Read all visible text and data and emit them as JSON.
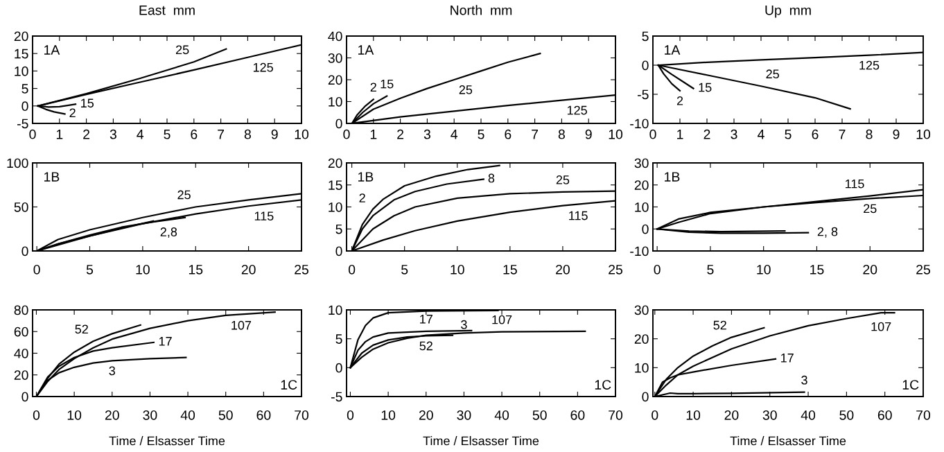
{
  "chart_data": [
    {
      "type": "line",
      "title": "East  mm",
      "xlim": [
        0,
        10
      ],
      "xticks": [
        0,
        1,
        2,
        3,
        4,
        5,
        6,
        7,
        8,
        9,
        10
      ],
      "ylim": [
        -5,
        20
      ],
      "yticks": [
        -5,
        0,
        5,
        10,
        15,
        20
      ],
      "grid": false,
      "marker": "none",
      "line_style": "solid",
      "series": [
        {
          "color": "#000000",
          "x": [
            0.2,
            2,
            4,
            6,
            8,
            10
          ],
          "values": [
            0,
            3.3,
            6.8,
            10.3,
            13.9,
            17.5
          ]
        },
        {
          "color": "#000000",
          "x": [
            0.2,
            2,
            4,
            6,
            7.2
          ],
          "values": [
            0,
            3.5,
            7.9,
            12.6,
            16.3
          ]
        },
        {
          "color": "#000000",
          "x": [
            0.2,
            0.6,
            1.0,
            1.6
          ],
          "values": [
            0,
            -0.3,
            -0.2,
            0.5
          ]
        },
        {
          "color": "#000000",
          "x": [
            0.2,
            0.5,
            0.8,
            1.2
          ],
          "values": [
            0,
            -1.0,
            -1.7,
            -2.3
          ]
        }
      ],
      "annotations": [
        "1A",
        {
          "text": "25",
          "x": 6,
          "y": 12.6
        },
        {
          "text": "125",
          "x": 8,
          "y": 13.9
        },
        {
          "text": "15",
          "x": 1.6,
          "y": 0.5
        },
        {
          "text": "2",
          "x": 1.2,
          "y": -2.3
        }
      ]
    },
    {
      "type": "line",
      "title": "North  mm",
      "xlim": [
        0,
        10
      ],
      "xticks": [
        0,
        1,
        2,
        3,
        4,
        5,
        6,
        7,
        8,
        9,
        10
      ],
      "ylim": [
        0,
        40
      ],
      "yticks": [
        0,
        10,
        20,
        30,
        40
      ],
      "grid": false,
      "marker": "none",
      "line_style": "solid",
      "series": [
        {
          "color": "#000000",
          "x": [
            0.2,
            0.4,
            0.7,
            1.0
          ],
          "values": [
            0,
            4,
            8,
            11
          ]
        },
        {
          "color": "#000000",
          "x": [
            0.2,
            0.6,
            1.0,
            1.5
          ],
          "values": [
            0,
            5,
            9,
            12.5
          ]
        },
        {
          "color": "#000000",
          "x": [
            0.2,
            1,
            2,
            3,
            4,
            5,
            6,
            7.2
          ],
          "values": [
            0,
            6.5,
            11.5,
            16,
            20,
            24,
            28,
            32
          ]
        },
        {
          "color": "#000000",
          "x": [
            0.2,
            2,
            4,
            6,
            8,
            10
          ],
          "values": [
            0,
            3,
            5.6,
            8.2,
            10.6,
            13
          ]
        }
      ],
      "annotations": [
        "1A",
        {
          "text": "2",
          "x": 1.0,
          "y": 11
        },
        {
          "text": "15",
          "x": 1.5,
          "y": 12.5
        },
        {
          "text": "25",
          "x": 4,
          "y": 20
        },
        {
          "text": "125",
          "x": 8,
          "y": 10.6
        }
      ]
    },
    {
      "type": "line",
      "title": "Up  mm",
      "xlim": [
        0,
        10
      ],
      "xticks": [
        0,
        1,
        2,
        3,
        4,
        5,
        6,
        7,
        8,
        9,
        10
      ],
      "ylim": [
        -10,
        5
      ],
      "yticks": [
        -10,
        -5,
        0,
        5
      ],
      "grid": false,
      "marker": "none",
      "line_style": "solid",
      "series": [
        {
          "color": "#000000",
          "x": [
            0.2,
            2,
            4,
            6,
            8,
            10
          ],
          "values": [
            0,
            0.5,
            0.9,
            1.3,
            1.7,
            2.2
          ]
        },
        {
          "color": "#000000",
          "x": [
            0.2,
            2,
            4,
            6,
            7.3
          ],
          "values": [
            0,
            -1.7,
            -3.6,
            -5.6,
            -7.5
          ]
        },
        {
          "color": "#000000",
          "x": [
            0.2,
            0.7,
            1.2,
            1.5
          ],
          "values": [
            0,
            -1.6,
            -3.1,
            -4.0
          ]
        },
        {
          "color": "#000000",
          "x": [
            0.2,
            0.4,
            0.7,
            1.0
          ],
          "values": [
            0,
            -1.5,
            -3.2,
            -4.4
          ]
        }
      ],
      "annotations": [
        "1A",
        {
          "text": "125",
          "x": 8,
          "y": 1.7
        },
        {
          "text": "25",
          "x": 4,
          "y": -3.6
        },
        {
          "text": "15",
          "x": 1.5,
          "y": -4.0
        },
        {
          "text": "2",
          "x": 1.0,
          "y": -4.4
        }
      ]
    },
    {
      "type": "line",
      "xlim": [
        -0.4,
        25
      ],
      "xticks": [
        0,
        5,
        10,
        15,
        20,
        25
      ],
      "ylim": [
        0,
        100
      ],
      "yticks": [
        0,
        50,
        100
      ],
      "grid": false,
      "marker": "none",
      "line_style": "solid",
      "series": [
        {
          "color": "#000000",
          "x": [
            0,
            2,
            5,
            10,
            15,
            20,
            25
          ],
          "values": [
            0,
            13,
            24,
            38,
            50,
            58,
            65
          ]
        },
        {
          "color": "#000000",
          "x": [
            0,
            5,
            10,
            15,
            20,
            25
          ],
          "values": [
            0,
            17,
            31,
            42,
            51,
            58
          ]
        },
        {
          "color": "#000000",
          "x": [
            0,
            2,
            5,
            8,
            11
          ],
          "values": [
            0,
            8,
            17,
            26,
            34
          ]
        },
        {
          "color": "#000000",
          "x": [
            0,
            2,
            5,
            8,
            11,
            14
          ],
          "values": [
            0,
            8,
            18,
            27,
            33,
            38
          ]
        }
      ],
      "annotations": [
        "1B",
        {
          "text": "25",
          "x": 15,
          "y": 50
        },
        {
          "text": "115",
          "x": 20,
          "y": 51
        },
        {
          "text": "2,8",
          "x": 11,
          "y": 33
        }
      ]
    },
    {
      "type": "line",
      "xlim": [
        -0.5,
        25
      ],
      "xticks": [
        0,
        5,
        10,
        15,
        20,
        25
      ],
      "ylim": [
        0,
        20
      ],
      "yticks": [
        0,
        5,
        10,
        15,
        20
      ],
      "grid": false,
      "marker": "none",
      "line_style": "solid",
      "series": [
        {
          "color": "#000000",
          "x": [
            0,
            1,
            2,
            3,
            5,
            8,
            11,
            14
          ],
          "values": [
            0,
            6,
            9.5,
            11.8,
            14.8,
            17,
            18.5,
            19.4
          ]
        },
        {
          "color": "#000000",
          "x": [
            0,
            1,
            2,
            4,
            6,
            9,
            12.5
          ],
          "values": [
            0,
            5,
            8,
            11.6,
            13.5,
            15.2,
            16.3
          ]
        },
        {
          "color": "#000000",
          "x": [
            0,
            2,
            4,
            6,
            10,
            15,
            20,
            25
          ],
          "values": [
            0,
            5,
            8,
            10,
            12,
            13,
            13.4,
            13.6
          ]
        },
        {
          "color": "#000000",
          "x": [
            0,
            3,
            6,
            10,
            15,
            20,
            25
          ],
          "values": [
            0,
            2.5,
            4.6,
            6.8,
            8.8,
            10.3,
            11.4
          ]
        }
      ],
      "annotations": [
        "1B",
        {
          "text": "2",
          "x": 3,
          "y": 11.8
        },
        {
          "text": "8",
          "x": 12.5,
          "y": 16.3
        },
        {
          "text": "25",
          "x": 20,
          "y": 13.4
        },
        {
          "text": "115",
          "x": 20,
          "y": 10.3
        }
      ]
    },
    {
      "type": "line",
      "xlim": [
        -0.4,
        25
      ],
      "xticks": [
        0,
        5,
        10,
        15,
        20,
        25
      ],
      "ylim": [
        -10,
        30
      ],
      "yticks": [
        -10,
        0,
        10,
        20,
        30
      ],
      "grid": false,
      "marker": "none",
      "line_style": "solid",
      "series": [
        {
          "color": "#000000",
          "x": [
            0,
            2,
            5,
            10,
            15,
            20,
            25
          ],
          "values": [
            0,
            3,
            7,
            10,
            12.5,
            15,
            17.8
          ]
        },
        {
          "color": "#000000",
          "x": [
            0,
            2,
            5,
            10,
            15,
            20,
            25
          ],
          "values": [
            0,
            4.5,
            7.5,
            10,
            12,
            13.8,
            15.2
          ]
        },
        {
          "color": "#000000",
          "x": [
            0,
            3,
            6,
            12
          ],
          "values": [
            0,
            -1.0,
            -1.2,
            -0.9
          ]
        },
        {
          "color": "#000000",
          "x": [
            0,
            3,
            6,
            10,
            14.2
          ],
          "values": [
            0,
            -1.5,
            -1.9,
            -1.9,
            -1.7
          ]
        }
      ],
      "annotations": [
        "1B",
        {
          "text": "115",
          "x": 20,
          "y": 15
        },
        {
          "text": "25",
          "x": 20,
          "y": 13.8
        },
        {
          "text": "2, 8",
          "x": 14.2,
          "y": -1.7
        }
      ]
    },
    {
      "type": "line",
      "xlabel": "Time / Elsasser Time",
      "xlim": [
        -1,
        70
      ],
      "xticks": [
        0,
        10,
        20,
        30,
        40,
        50,
        60,
        70
      ],
      "ylim": [
        0,
        80
      ],
      "yticks": [
        0,
        20,
        40,
        60,
        80
      ],
      "grid": false,
      "marker": "none",
      "line_style": "solid",
      "series": [
        {
          "color": "#000000",
          "x": [
            0,
            3,
            6,
            10,
            15,
            20,
            27.5
          ],
          "values": [
            0,
            17,
            30,
            41,
            51,
            58,
            66
          ]
        },
        {
          "color": "#000000",
          "x": [
            0,
            3,
            6,
            10,
            15,
            20,
            30,
            40,
            50,
            63
          ],
          "values": [
            0,
            14,
            25,
            35,
            45,
            53,
            63,
            70,
            75,
            78
          ]
        },
        {
          "color": "#000000",
          "x": [
            0,
            3,
            6,
            10,
            15,
            20,
            31
          ],
          "values": [
            0,
            18,
            28,
            36,
            42,
            45,
            50
          ]
        },
        {
          "color": "#000000",
          "x": [
            0,
            3,
            6,
            10,
            15,
            20,
            30,
            39.5
          ],
          "values": [
            0,
            15,
            22,
            27,
            31,
            33,
            35,
            36
          ]
        }
      ],
      "annotations": [
        "1C",
        {
          "text": "52",
          "x": 15,
          "y": 51
        },
        {
          "text": "107",
          "x": 50,
          "y": 75
        },
        {
          "text": "17",
          "x": 31,
          "y": 50
        },
        {
          "text": "3",
          "x": 20,
          "y": 33
        }
      ]
    },
    {
      "type": "line",
      "xlabel": "Time / Elsasser Time",
      "xlim": [
        -1,
        70
      ],
      "xticks": [
        0,
        10,
        20,
        30,
        40,
        50,
        60,
        70
      ],
      "ylim": [
        -5,
        10
      ],
      "yticks": [
        -5,
        0,
        5,
        10
      ],
      "grid": false,
      "marker": "none",
      "line_style": "solid",
      "series": [
        {
          "color": "#000000",
          "x": [
            0,
            2,
            4,
            6,
            10,
            20,
            39
          ],
          "values": [
            0,
            4.8,
            7.3,
            8.6,
            9.5,
            9.8,
            9.9
          ]
        },
        {
          "color": "#000000",
          "x": [
            0,
            2,
            4,
            6,
            10,
            20,
            32
          ],
          "values": [
            0,
            3,
            4.5,
            5.3,
            6,
            6.3,
            6.4
          ]
        },
        {
          "color": "#000000",
          "x": [
            0,
            3,
            6,
            10,
            15,
            20,
            27
          ],
          "values": [
            0,
            2.5,
            3.9,
            4.8,
            5.3,
            5.5,
            5.6
          ]
        },
        {
          "color": "#000000",
          "x": [
            0,
            3,
            6,
            10,
            15,
            20,
            30,
            40,
            62
          ],
          "values": [
            0,
            1.8,
            3.2,
            4.3,
            5.1,
            5.6,
            6.0,
            6.2,
            6.3
          ]
        }
      ],
      "annotations": [
        "1C",
        {
          "text": "3",
          "x": 30,
          "y": 9.85
        },
        {
          "text": "17",
          "x": 20,
          "y": 6.3
        },
        {
          "text": "52",
          "x": 20,
          "y": 5.5
        },
        {
          "text": "107",
          "x": 40,
          "y": 6.2
        }
      ]
    },
    {
      "type": "line",
      "xlabel": "Time / Elsasser Time",
      "xlim": [
        -0.5,
        70
      ],
      "xticks": [
        0,
        10,
        20,
        30,
        40,
        50,
        60,
        70
      ],
      "ylim": [
        0,
        30
      ],
      "yticks": [
        0,
        10,
        20,
        30
      ],
      "grid": false,
      "marker": "none",
      "line_style": "solid",
      "series": [
        {
          "color": "#000000",
          "x": [
            0,
            3,
            6,
            10,
            15,
            20,
            28.5
          ],
          "values": [
            0,
            6,
            10,
            14,
            17.5,
            20.5,
            23.8
          ]
        },
        {
          "color": "#000000",
          "x": [
            0,
            3,
            6,
            10,
            20,
            30,
            40,
            50,
            59,
            62.5
          ],
          "values": [
            0,
            4,
            7.5,
            10.5,
            16.5,
            21,
            24.5,
            27,
            29,
            29
          ]
        },
        {
          "color": "#000000",
          "x": [
            0,
            2,
            4,
            6,
            10,
            20,
            31.5
          ],
          "values": [
            0,
            5,
            6.5,
            7.5,
            8.5,
            10.8,
            13
          ]
        },
        {
          "color": "#000000",
          "x": [
            0,
            2,
            4,
            6,
            10,
            20,
            39
          ],
          "values": [
            0,
            0.6,
            1.2,
            1,
            1,
            1.1,
            1.5
          ]
        }
      ],
      "annotations": [
        "1C",
        {
          "text": "52",
          "x": 20,
          "y": 20.5
        },
        {
          "text": "107",
          "x": 59,
          "y": 29
        },
        {
          "text": "17",
          "x": 31.5,
          "y": 13
        },
        {
          "text": "3",
          "x": 39,
          "y": 1.5
        }
      ]
    }
  ]
}
